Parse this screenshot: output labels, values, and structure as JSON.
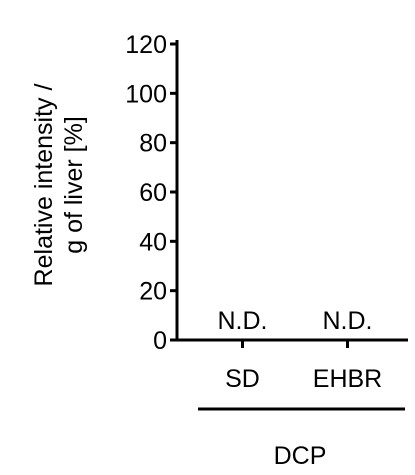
{
  "chart_data": {
    "type": "bar",
    "title": "",
    "xlabel": "",
    "ylabel": "Relative intensity / g of liver [%]",
    "ylabel_lines": [
      "Relative intensity /",
      "g of liver [%]"
    ],
    "ylim": [
      0,
      120
    ],
    "yticks": [
      0,
      20,
      40,
      60,
      80,
      100,
      120
    ],
    "categories": [
      "SD",
      "EHBR"
    ],
    "values": [
      null,
      null
    ],
    "data_labels": [
      "N.D.",
      "N.D."
    ],
    "group_label": "DCP",
    "grid": false,
    "legend": "none"
  }
}
